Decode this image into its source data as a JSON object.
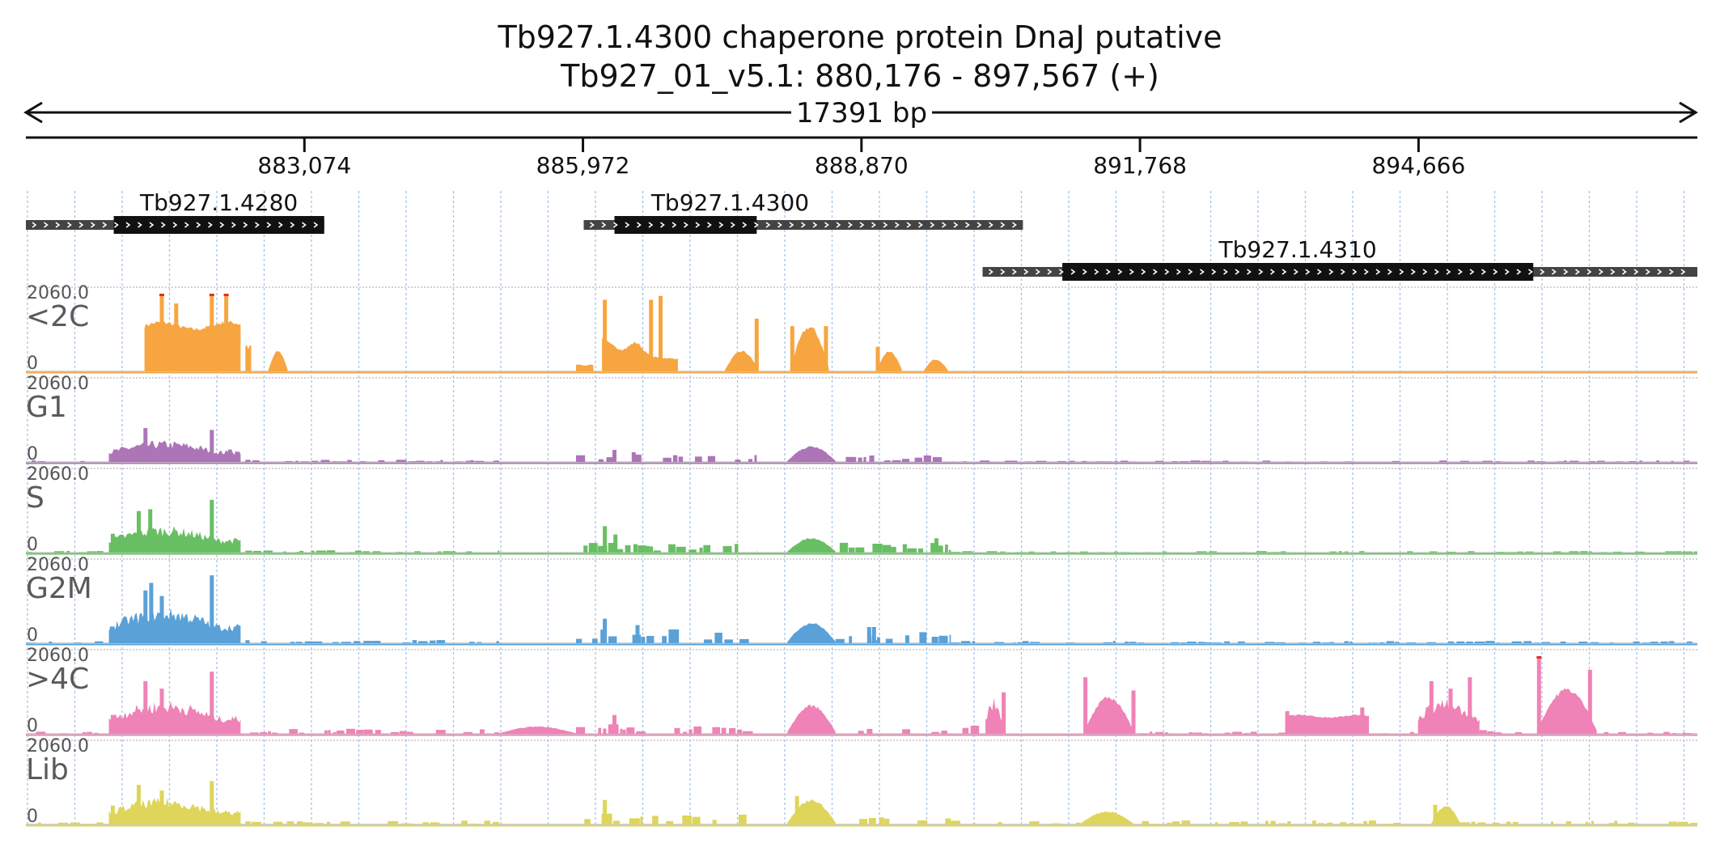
{
  "header": {
    "title": "Tb927.1.4300  chaperone protein DnaJ  putative",
    "locus": "Tb927_01_v5.1: 880,176 - 897,567 (+)",
    "length_label": "17391 bp"
  },
  "region": {
    "start": 880176,
    "end": 897567
  },
  "ruler": {
    "ticks": [
      {
        "value": 883074,
        "label": "883,074"
      },
      {
        "value": 885972,
        "label": "885,972"
      },
      {
        "value": 888870,
        "label": "888,870"
      },
      {
        "value": 891768,
        "label": "891,768"
      },
      {
        "value": 894666,
        "label": "894,666"
      }
    ]
  },
  "genes": [
    {
      "name": "Tb927.1.4280",
      "start": 880176,
      "end": 883280,
      "cds_start": 881090,
      "cds_end": 883280,
      "row": 0
    },
    {
      "name": "Tb927.1.4300",
      "start": 885980,
      "end": 890550,
      "cds_start": 886300,
      "cds_end": 887780,
      "row": 0
    },
    {
      "name": "Tb927.1.4310",
      "start": 890130,
      "end": 897567,
      "cds_start": 890960,
      "cds_end": 895860,
      "row": 1
    }
  ],
  "tracks": [
    {
      "name": "<2C",
      "max_label": "2060.0",
      "min_label": "0",
      "color": "#f7a540",
      "clip_color": "#e03030",
      "segments": [
        {
          "start": 881410,
          "end": 882410,
          "profile": "plateau",
          "height": 1300,
          "peaks": [
            [
              881590,
              2060
            ],
            [
              881740,
              1800
            ],
            [
              882110,
              2060
            ],
            [
              882260,
              2060
            ]
          ]
        },
        {
          "start": 882460,
          "end": 882520,
          "profile": "plateau",
          "height": 700
        },
        {
          "start": 882700,
          "end": 882900,
          "profile": "bell",
          "height": 500
        },
        {
          "start": 885900,
          "end": 886080,
          "profile": "plateau",
          "height": 180
        },
        {
          "start": 886170,
          "end": 886960,
          "profile": "decay",
          "height": 900,
          "peaks": [
            [
              886200,
              1900
            ],
            [
              886680,
              1900
            ],
            [
              886780,
              2000
            ]
          ]
        },
        {
          "start": 887450,
          "end": 887800,
          "profile": "bell",
          "height": 500,
          "peaks": [
            [
              887780,
              1400
            ]
          ]
        },
        {
          "start": 888130,
          "end": 888530,
          "profile": "bell",
          "height": 1100,
          "peaks": [
            [
              888150,
              1200
            ],
            [
              888500,
              1200
            ]
          ]
        },
        {
          "start": 889030,
          "end": 889290,
          "profile": "bell",
          "height": 500,
          "peaks": [
            [
              889040,
              650
            ]
          ]
        },
        {
          "start": 889520,
          "end": 889770,
          "profile": "bell",
          "height": 300
        }
      ]
    },
    {
      "name": "G1",
      "max_label": "2060.0",
      "min_label": "0",
      "color": "#ad75b8",
      "segments": [
        {
          "start": 880176,
          "end": 880980,
          "profile": "noise",
          "height": 40
        },
        {
          "start": 881040,
          "end": 882410,
          "profile": "rise",
          "height": 420,
          "peaks": [
            [
              881420,
              900
            ],
            [
              882110,
              850
            ],
            [
              882300,
              330
            ]
          ]
        },
        {
          "start": 882460,
          "end": 885100,
          "profile": "noise",
          "height": 60
        },
        {
          "start": 885900,
          "end": 887780,
          "profile": "noise",
          "height": 220,
          "peaks": [
            [
              886300,
              320
            ],
            [
              886500,
              260
            ]
          ]
        },
        {
          "start": 888100,
          "end": 888600,
          "profile": "bell",
          "height": 380
        },
        {
          "start": 888600,
          "end": 889800,
          "profile": "noise",
          "height": 180
        },
        {
          "start": 889800,
          "end": 897567,
          "profile": "noise",
          "height": 40
        }
      ]
    },
    {
      "name": "S",
      "max_label": "2060.0",
      "min_label": "0",
      "color": "#68bf63",
      "segments": [
        {
          "start": 880176,
          "end": 880980,
          "profile": "noise",
          "height": 50
        },
        {
          "start": 881040,
          "end": 882410,
          "profile": "rise",
          "height": 520,
          "peaks": [
            [
              881350,
              1100
            ],
            [
              881470,
              1150
            ],
            [
              882110,
              1400
            ],
            [
              881080,
              500
            ]
          ]
        },
        {
          "start": 882460,
          "end": 885100,
          "profile": "noise",
          "height": 60
        },
        {
          "start": 885900,
          "end": 887780,
          "profile": "noise",
          "height": 260,
          "peaks": [
            [
              886200,
              700
            ],
            [
              886310,
              480
            ]
          ]
        },
        {
          "start": 888100,
          "end": 888600,
          "profile": "bell",
          "height": 360
        },
        {
          "start": 888600,
          "end": 889800,
          "profile": "noise",
          "height": 260,
          "peaks": [
            [
              889650,
              380
            ]
          ]
        },
        {
          "start": 889800,
          "end": 897567,
          "profile": "noise",
          "height": 40
        }
      ]
    },
    {
      "name": "G2M",
      "max_label": "2060.0",
      "min_label": "0",
      "color": "#5aa1d8",
      "segments": [
        {
          "start": 880176,
          "end": 880980,
          "profile": "noise",
          "height": 50
        },
        {
          "start": 881040,
          "end": 882410,
          "profile": "rise",
          "height": 700,
          "peaks": [
            [
              881420,
              1400
            ],
            [
              881480,
              1600
            ],
            [
              881590,
              1250
            ],
            [
              882110,
              1800
            ]
          ]
        },
        {
          "start": 882460,
          "end": 885100,
          "profile": "noise",
          "height": 90
        },
        {
          "start": 885900,
          "end": 887780,
          "profile": "noise",
          "height": 380,
          "peaks": [
            [
              886200,
              650
            ],
            [
              886540,
              480
            ]
          ]
        },
        {
          "start": 888100,
          "end": 888600,
          "profile": "bell",
          "height": 500
        },
        {
          "start": 888600,
          "end": 889800,
          "profile": "noise",
          "height": 300,
          "peaks": [
            [
              888950,
              430
            ],
            [
              889000,
              430
            ]
          ]
        },
        {
          "start": 889800,
          "end": 897567,
          "profile": "noise",
          "height": 60
        }
      ]
    },
    {
      "name": ">4C",
      "max_label": "2060.0",
      "min_label": "0",
      "color": "#ef82b6",
      "clip_color": "#e03030",
      "segments": [
        {
          "start": 880176,
          "end": 880980,
          "profile": "noise",
          "height": 60
        },
        {
          "start": 881040,
          "end": 882410,
          "profile": "rise",
          "height": 650,
          "peaks": [
            [
              881080,
              500
            ],
            [
              881420,
              1400
            ],
            [
              881590,
              1200
            ],
            [
              882110,
              1650
            ]
          ]
        },
        {
          "start": 882460,
          "end": 885100,
          "profile": "noise",
          "height": 140
        },
        {
          "start": 885100,
          "end": 885900,
          "profile": "bell",
          "height": 180
        },
        {
          "start": 885900,
          "end": 887780,
          "profile": "noise",
          "height": 260,
          "peaks": [
            [
              886300,
              500
            ]
          ]
        },
        {
          "start": 888100,
          "end": 888600,
          "profile": "bell",
          "height": 700,
          "peaks": [
            [
              888300,
              700
            ]
          ]
        },
        {
          "start": 888600,
          "end": 890160,
          "profile": "noise",
          "height": 220
        },
        {
          "start": 890160,
          "end": 890370,
          "profile": "rise",
          "height": 700,
          "peaks": [
            [
              890350,
              1100
            ]
          ]
        },
        {
          "start": 890350,
          "end": 890650,
          "profile": "noise",
          "height": 160
        },
        {
          "start": 891190,
          "end": 891700,
          "profile": "bell",
          "height": 900,
          "peaks": [
            [
              891200,
              1500
            ],
            [
              891700,
              1150
            ]
          ]
        },
        {
          "start": 891700,
          "end": 893280,
          "profile": "noise",
          "height": 60
        },
        {
          "start": 893280,
          "end": 894150,
          "profile": "plateau",
          "height": 500,
          "peaks": [
            [
              893300,
              600
            ],
            [
              894080,
              700
            ]
          ]
        },
        {
          "start": 894150,
          "end": 894660,
          "profile": "noise",
          "height": 80
        },
        {
          "start": 894660,
          "end": 895300,
          "profile": "rise",
          "height": 700,
          "peaks": [
            [
              894800,
              1400
            ],
            [
              895000,
              1200
            ],
            [
              895200,
              1500
            ]
          ]
        },
        {
          "start": 895300,
          "end": 895900,
          "profile": "noise",
          "height": 120
        },
        {
          "start": 895900,
          "end": 896520,
          "profile": "bell",
          "height": 1100,
          "peaks": [
            [
              895920,
              2060
            ],
            [
              896450,
              1700
            ]
          ]
        },
        {
          "start": 896520,
          "end": 897567,
          "profile": "noise",
          "height": 60
        }
      ]
    },
    {
      "name": "Lib",
      "max_label": "2060.0",
      "min_label": "0",
      "color": "#ded55a",
      "segments": [
        {
          "start": 880176,
          "end": 880980,
          "profile": "noise",
          "height": 60
        },
        {
          "start": 881040,
          "end": 882410,
          "profile": "rise",
          "height": 520,
          "peaks": [
            [
              881080,
              500
            ],
            [
              881350,
              1050
            ],
            [
              881590,
              900
            ],
            [
              882110,
              1150
            ]
          ]
        },
        {
          "start": 882460,
          "end": 885100,
          "profile": "noise",
          "height": 110
        },
        {
          "start": 885900,
          "end": 887780,
          "profile": "noise",
          "height": 300,
          "peaks": [
            [
              886200,
              650
            ]
          ]
        },
        {
          "start": 888100,
          "end": 888600,
          "profile": "bell",
          "height": 600,
          "peaks": [
            [
              888200,
              750
            ]
          ]
        },
        {
          "start": 888600,
          "end": 889800,
          "profile": "noise",
          "height": 200
        },
        {
          "start": 889800,
          "end": 891150,
          "profile": "noise",
          "height": 110
        },
        {
          "start": 891150,
          "end": 891700,
          "profile": "bell",
          "height": 320
        },
        {
          "start": 891700,
          "end": 894660,
          "profile": "noise",
          "height": 110
        },
        {
          "start": 894800,
          "end": 895100,
          "profile": "bell",
          "height": 450,
          "peaks": [
            [
              894840,
              520
            ]
          ]
        },
        {
          "start": 895100,
          "end": 897567,
          "profile": "noise",
          "height": 100
        }
      ]
    }
  ]
}
